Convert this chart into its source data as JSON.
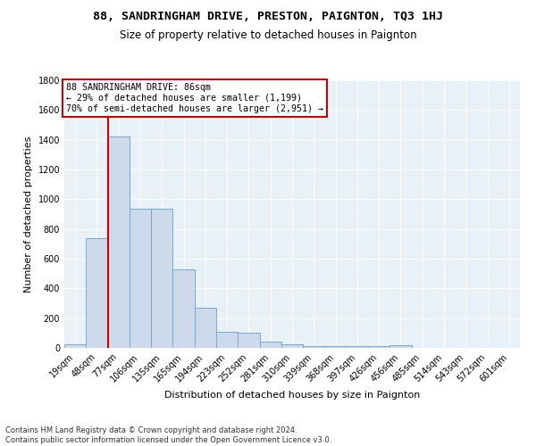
{
  "title": "88, SANDRINGHAM DRIVE, PRESTON, PAIGNTON, TQ3 1HJ",
  "subtitle": "Size of property relative to detached houses in Paignton",
  "xlabel": "Distribution of detached houses by size in Paignton",
  "ylabel": "Number of detached properties",
  "bin_labels": [
    "19sqm",
    "48sqm",
    "77sqm",
    "106sqm",
    "135sqm",
    "165sqm",
    "194sqm",
    "223sqm",
    "252sqm",
    "281sqm",
    "310sqm",
    "339sqm",
    "368sqm",
    "397sqm",
    "426sqm",
    "456sqm",
    "485sqm",
    "514sqm",
    "543sqm",
    "572sqm",
    "601sqm"
  ],
  "bar_values": [
    25,
    740,
    1420,
    935,
    935,
    530,
    270,
    110,
    100,
    45,
    25,
    15,
    15,
    15,
    15,
    20,
    0,
    0,
    0,
    0,
    0
  ],
  "bar_color": "#cddaeb",
  "bar_edge_color": "#7aa8d2",
  "vline_color": "#cc0000",
  "annotation_text": "88 SANDRINGHAM DRIVE: 86sqm\n← 29% of detached houses are smaller (1,199)\n70% of semi-detached houses are larger (2,951) →",
  "annotation_box_color": "white",
  "annotation_box_edge": "#cc0000",
  "footnote": "Contains HM Land Registry data © Crown copyright and database right 2024.\nContains public sector information licensed under the Open Government Licence v3.0.",
  "background_color": "#e8f0f8",
  "ylim": [
    0,
    1800
  ],
  "yticks": [
    0,
    200,
    400,
    600,
    800,
    1000,
    1200,
    1400,
    1600,
    1800
  ],
  "title_fontsize": 9.5,
  "subtitle_fontsize": 8.5,
  "ylabel_fontsize": 8,
  "xlabel_fontsize": 8,
  "tick_fontsize": 7,
  "annot_fontsize": 7.2,
  "footnote_fontsize": 6
}
